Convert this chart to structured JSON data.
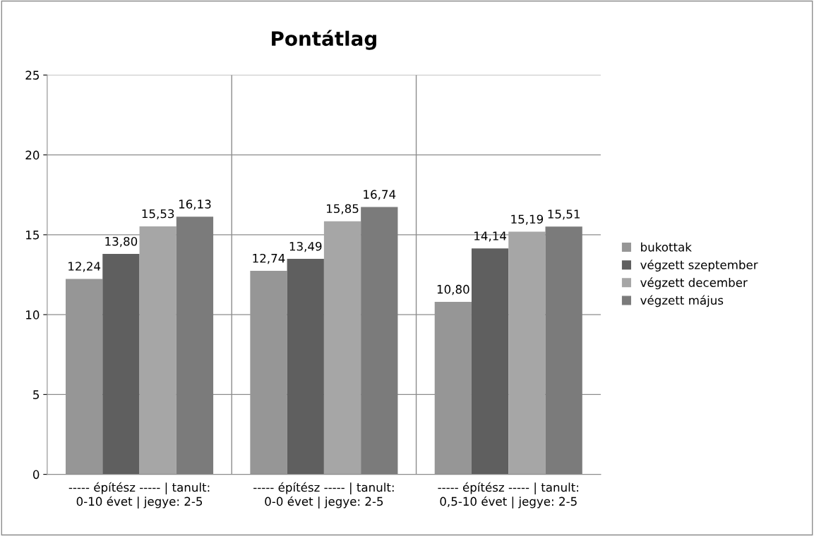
{
  "chart_data": {
    "type": "bar",
    "title": "Pontátlag",
    "categories": [
      "----- építész ----- | tanult:\n0-10 évet | jegye: 2-5",
      "----- építész ----- | tanult:\n0-0 évet | jegye: 2-5",
      "----- építész ----- | tanult:\n0,5-10 évet | jegye: 2-5"
    ],
    "series": [
      {
        "name": "bukottak",
        "color": "#969696",
        "values": [
          12.24,
          12.74,
          10.8
        ],
        "value_labels": [
          "12,24",
          "12,74",
          "10,80"
        ]
      },
      {
        "name": "végzett szeptember",
        "color": "#5f5f5f",
        "values": [
          13.8,
          13.49,
          14.14
        ],
        "value_labels": [
          "13,80",
          "13,49",
          "14,14"
        ]
      },
      {
        "name": "végzett december",
        "color": "#a6a6a6",
        "values": [
          15.53,
          15.85,
          15.19
        ],
        "value_labels": [
          "15,53",
          "15,85",
          "15,19"
        ]
      },
      {
        "name": "végzett május",
        "color": "#7b7b7b",
        "values": [
          16.13,
          16.74,
          15.51
        ],
        "value_labels": [
          "16,13",
          "16,74",
          "15,51"
        ]
      }
    ],
    "ylim": [
      0,
      25
    ],
    "yticks": [
      0,
      5,
      10,
      15,
      20,
      25
    ],
    "grid": true,
    "legend": "right"
  }
}
